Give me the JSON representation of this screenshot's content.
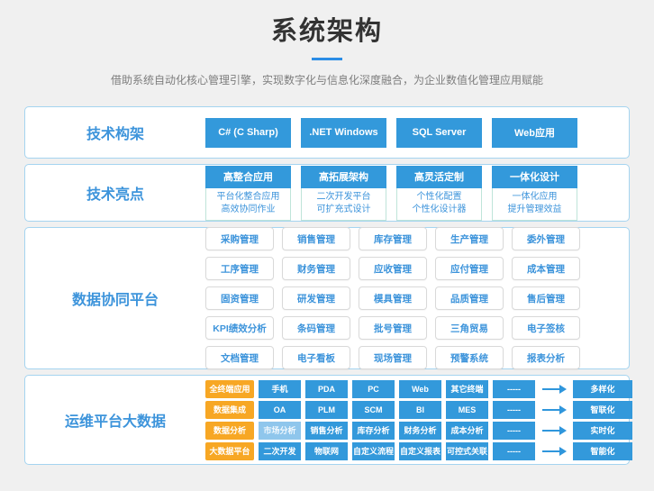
{
  "header": {
    "title": "系统架构",
    "subtitle": "借助系统自动化核心管理引擎，实现数字化与信息化深度融合，为企业数值化管理应用赋能"
  },
  "colors": {
    "accent_blue": "#3399db",
    "accent_orange": "#f7a724",
    "card_border_blue": "#a5d4f0",
    "text_blue": "#3d94db",
    "title_underline_blue": "#2b8de6"
  },
  "framework": {
    "label": "技术构架",
    "buttons": [
      "C# (C Sharp)",
      ".NET Windows",
      "SQL Server",
      "Web应用"
    ]
  },
  "highlights": {
    "label": "技术亮点",
    "cards": [
      {
        "title": "高整合应用",
        "line1": "平台化整合应用",
        "line2": "高效协同作业"
      },
      {
        "title": "高拓展架构",
        "line1": "二次开发平台",
        "line2": "可扩充式设计"
      },
      {
        "title": "高灵活定制",
        "line1": "个性化配置",
        "line2": "个性化设计器"
      },
      {
        "title": "一体化设计",
        "line1": "一体化应用",
        "line2": "提升管理效益"
      }
    ]
  },
  "collab": {
    "label": "数据协同平台",
    "rows": [
      [
        "采购管理",
        "销售管理",
        "库存管理",
        "生产管理",
        "委外管理"
      ],
      [
        "工序管理",
        "财务管理",
        "应收管理",
        "应付管理",
        "成本管理"
      ],
      [
        "固资管理",
        "研发管理",
        "模具管理",
        "品质管理",
        "售后管理"
      ],
      [
        "KPI绩效分析",
        "条码管理",
        "批号管理",
        "三角贸易",
        "电子签核"
      ],
      [
        "文档管理",
        "电子看板",
        "现场管理",
        "预警系统",
        "报表分析"
      ]
    ]
  },
  "bigdata": {
    "label": "运维平台大数据",
    "rows": [
      {
        "tag": "全终端应用",
        "items": [
          "手机",
          "PDA",
          "PC",
          "Web",
          "其它终端",
          "-----"
        ],
        "result": "多样化"
      },
      {
        "tag": "数据集成",
        "items": [
          "OA",
          "PLM",
          "SCM",
          "BI",
          "MES",
          "-----"
        ],
        "result": "智联化"
      },
      {
        "tag": "数据分析",
        "items": [
          "市场分析",
          "销售分析",
          "库存分析",
          "财务分析",
          "成本分析",
          "-----"
        ],
        "result": "实时化"
      },
      {
        "tag": "大数据平台",
        "items": [
          "二次开发",
          "物联网",
          "自定义流程",
          "自定义报表",
          "可控式关联",
          "-----"
        ],
        "result": "智能化"
      }
    ]
  }
}
